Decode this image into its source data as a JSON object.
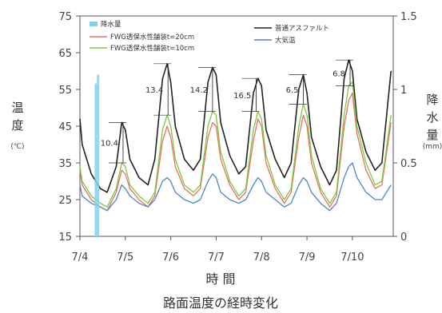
{
  "chart_data": {
    "type": "line",
    "title": "路面温度の経時変化",
    "xlabel": "時 間",
    "ylabel_left": [
      "温",
      "度"
    ],
    "ylabel_left_unit": "(℃)",
    "ylabel_right": [
      "降",
      "水",
      "量"
    ],
    "ylabel_right_unit": "(mm)",
    "ylim_left": [
      15,
      75
    ],
    "yticks_left": [
      15,
      25,
      35,
      45,
      55,
      65,
      75
    ],
    "ylim_right": [
      0,
      1.5
    ],
    "yticks_right": [
      "0",
      "0.5",
      "1",
      "1.5"
    ],
    "yticks_right_values": [
      0,
      0.5,
      1,
      1.5
    ],
    "xlim": [
      0,
      6.9
    ],
    "xticks": [
      "7/4",
      "7/5",
      "7/6",
      "7/7",
      "7/8",
      "7/9",
      "7/10"
    ],
    "xticks_values": [
      0,
      1,
      2,
      3,
      4,
      5,
      6
    ],
    "legend_placement": "top",
    "series": [
      {
        "name": "普通アスファルト",
        "color": "#222222",
        "axis": "left",
        "x": [
          0,
          0.05,
          0.25,
          0.45,
          0.6,
          0.8,
          0.92,
          1.0,
          1.1,
          1.3,
          1.5,
          1.65,
          1.82,
          1.92,
          2.0,
          2.1,
          2.3,
          2.5,
          2.65,
          2.82,
          2.92,
          3.0,
          3.1,
          3.3,
          3.5,
          3.65,
          3.82,
          3.92,
          4.0,
          4.1,
          4.3,
          4.5,
          4.65,
          4.82,
          4.92,
          5.0,
          5.1,
          5.3,
          5.5,
          5.65,
          5.82,
          5.92,
          6.0,
          6.1,
          6.3,
          6.5,
          6.65,
          6.85
        ],
        "y": [
          47,
          40,
          32,
          28,
          27,
          34,
          46,
          44,
          36,
          31,
          29,
          36,
          58,
          62,
          57,
          45,
          36,
          33,
          36,
          57,
          61,
          59,
          46,
          37,
          32,
          34,
          54,
          58,
          56,
          44,
          36,
          31,
          35,
          55,
          59,
          54,
          42,
          34,
          29,
          33,
          58,
          63,
          60,
          47,
          38,
          33,
          35,
          60
        ]
      },
      {
        "name": "FWG透保水性舗装t=20cm",
        "color": "#e87060",
        "axis": "left",
        "x": [
          0,
          0.05,
          0.25,
          0.45,
          0.6,
          0.8,
          0.92,
          1.0,
          1.1,
          1.3,
          1.5,
          1.65,
          1.82,
          1.92,
          2.0,
          2.1,
          2.3,
          2.5,
          2.65,
          2.82,
          2.92,
          3.0,
          3.1,
          3.3,
          3.5,
          3.65,
          3.82,
          3.92,
          4.0,
          4.1,
          4.3,
          4.5,
          4.65,
          4.82,
          4.92,
          5.0,
          5.1,
          5.3,
          5.5,
          5.65,
          5.82,
          5.92,
          6.0,
          6.1,
          6.3,
          6.5,
          6.65,
          6.85
        ],
        "y": [
          33,
          29,
          25,
          23,
          22,
          27,
          33,
          32,
          28,
          25,
          23,
          26,
          41,
          45,
          42,
          34,
          28,
          26,
          28,
          42,
          46,
          45,
          36,
          29,
          25,
          27,
          41,
          47,
          45,
          35,
          28,
          24,
          27,
          42,
          48,
          45,
          35,
          27,
          23,
          26,
          45,
          52,
          54,
          43,
          33,
          28,
          29,
          46
        ]
      },
      {
        "name": "FWG透保水性舗装t=10cm",
        "color": "#7ac943",
        "axis": "left",
        "x": [
          0,
          0.05,
          0.25,
          0.45,
          0.6,
          0.8,
          0.92,
          1.0,
          1.1,
          1.3,
          1.5,
          1.65,
          1.82,
          1.92,
          2.0,
          2.1,
          2.3,
          2.5,
          2.65,
          2.82,
          2.92,
          3.0,
          3.1,
          3.3,
          3.5,
          3.65,
          3.82,
          3.92,
          4.0,
          4.1,
          4.3,
          4.5,
          4.65,
          4.82,
          4.92,
          5.0,
          5.1,
          5.3,
          5.5,
          5.65,
          5.82,
          5.92,
          6.0,
          6.1,
          6.3,
          6.5,
          6.65,
          6.85
        ],
        "y": [
          34,
          30,
          26,
          24,
          23,
          28,
          35,
          34,
          29,
          26,
          24,
          27,
          44,
          48,
          45,
          36,
          29,
          27,
          29,
          45,
          49,
          48,
          38,
          30,
          26,
          28,
          44,
          49,
          47,
          37,
          29,
          25,
          28,
          45,
          51,
          48,
          37,
          28,
          24,
          27,
          48,
          56,
          57,
          45,
          35,
          29,
          30,
          48
        ]
      },
      {
        "name": "大気温",
        "color": "#4a86c8",
        "axis": "left",
        "x": [
          0,
          0.05,
          0.25,
          0.45,
          0.6,
          0.8,
          0.92,
          1.0,
          1.1,
          1.3,
          1.5,
          1.65,
          1.82,
          1.92,
          2.0,
          2.1,
          2.3,
          2.5,
          2.65,
          2.82,
          2.92,
          3.0,
          3.1,
          3.3,
          3.5,
          3.65,
          3.82,
          3.92,
          4.0,
          4.1,
          4.3,
          4.5,
          4.65,
          4.82,
          4.92,
          5.0,
          5.1,
          5.3,
          5.5,
          5.65,
          5.82,
          5.92,
          6.0,
          6.1,
          6.3,
          6.5,
          6.65,
          6.85
        ],
        "y": [
          29,
          26,
          24,
          23,
          22,
          25,
          29,
          28,
          26,
          24,
          23,
          25,
          30,
          31,
          30,
          27,
          25,
          24,
          25,
          30,
          32,
          31,
          27,
          25,
          24,
          25,
          29,
          31,
          30,
          27,
          25,
          23,
          24,
          29,
          31,
          30,
          27,
          24,
          22,
          24,
          31,
          34,
          35,
          31,
          27,
          25,
          25,
          29
        ]
      },
      {
        "name": "降水量",
        "color": "#7fd3ee",
        "axis": "right",
        "type": "bar",
        "x": [
          0.35,
          0.4
        ],
        "y": [
          1.04,
          1.1
        ]
      }
    ],
    "annotations": [
      {
        "label": "10.4",
        "x": 0.95
      },
      {
        "label": "13.4",
        "x": 1.94
      },
      {
        "label": "14.2",
        "x": 2.92
      },
      {
        "label": "16.5",
        "x": 3.88
      },
      {
        "label": "6.5",
        "x": 4.92
      },
      {
        "label": "6.8",
        "x": 5.95
      }
    ]
  }
}
